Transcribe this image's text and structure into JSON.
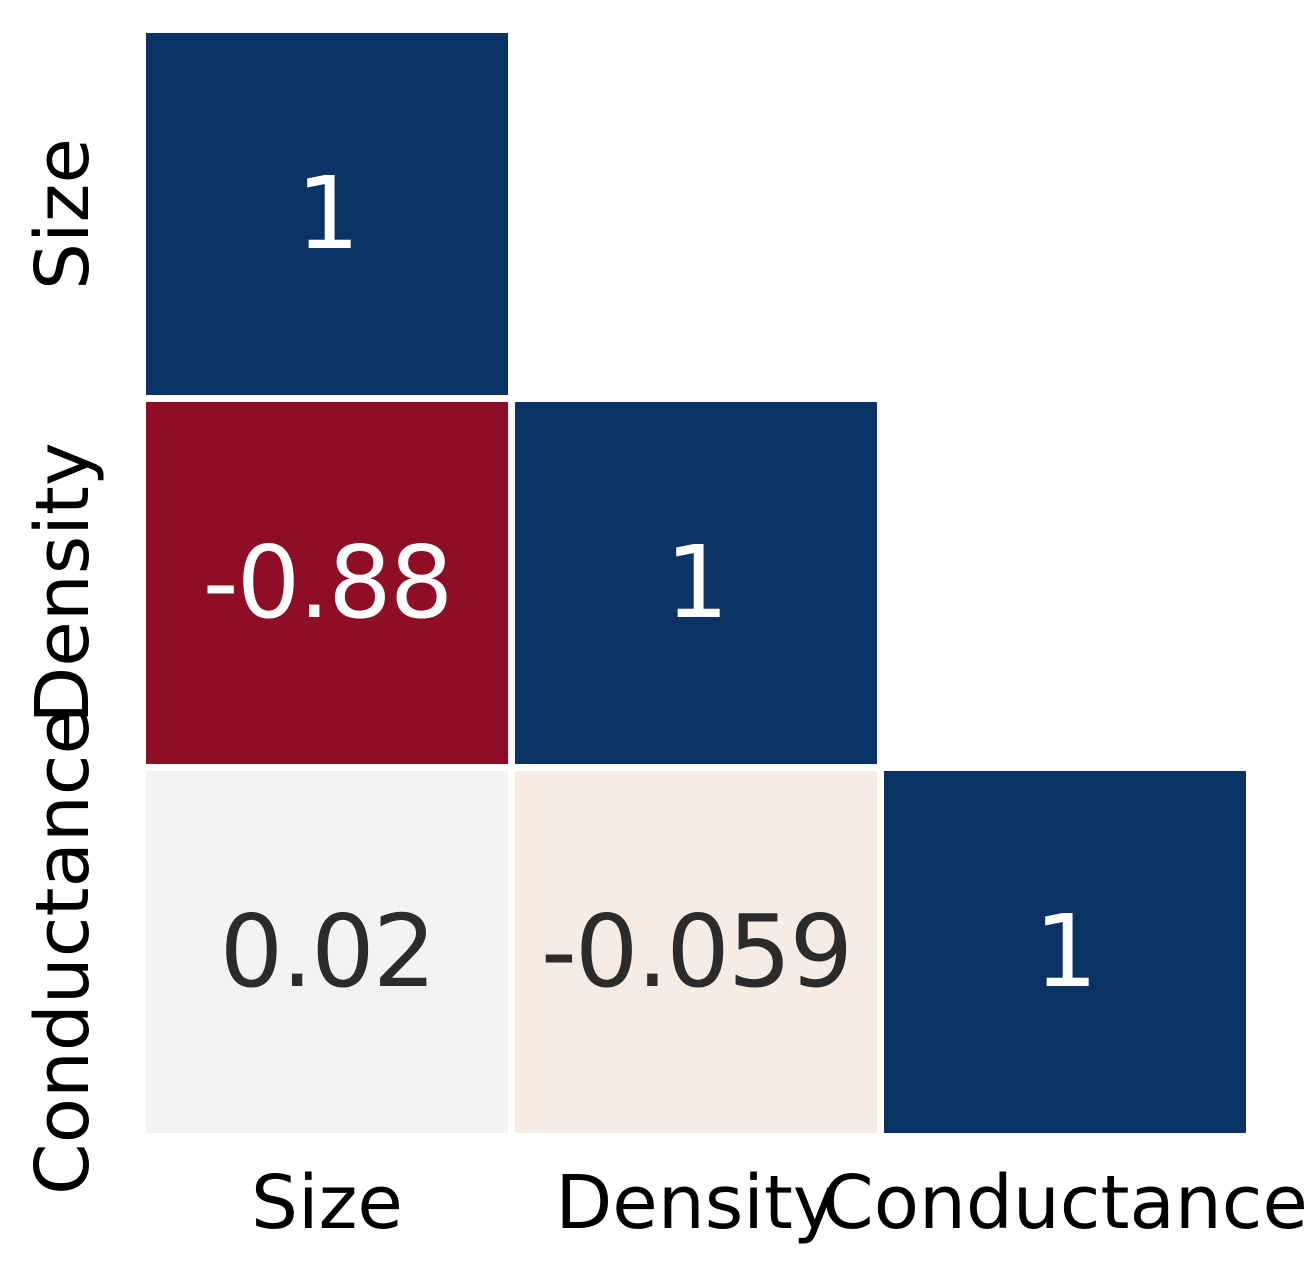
{
  "chart_data": {
    "type": "heatmap",
    "subtype": "correlation-matrix",
    "shape": "lower-triangular",
    "title": "",
    "variables": [
      "Size",
      "Density",
      "Conductance"
    ],
    "row_labels": [
      "Size",
      "Density",
      "Conductance"
    ],
    "col_labels": [
      "Size",
      "Density",
      "Conductance"
    ],
    "colormap": "RdBu",
    "value_range": [
      -1,
      1
    ],
    "grid": "off",
    "legend": "none",
    "matrix": [
      [
        1,
        null,
        null
      ],
      [
        -0.88,
        1,
        null
      ],
      [
        0.02,
        -0.059,
        1
      ]
    ],
    "cells": [
      {
        "row": 0,
        "col": 0,
        "value": 1,
        "label": "1",
        "bg": "#0a3264",
        "fg": "#ffffff"
      },
      {
        "row": 1,
        "col": 0,
        "value": -0.88,
        "label": "-0.88",
        "bg": "#8e0e26",
        "fg": "#ffffff"
      },
      {
        "row": 1,
        "col": 1,
        "value": 1,
        "label": "1",
        "bg": "#0a3264",
        "fg": "#ffffff"
      },
      {
        "row": 2,
        "col": 0,
        "value": 0.02,
        "label": "0.02",
        "bg": "#f2f3f5",
        "fg": "#2b2b2b"
      },
      {
        "row": 2,
        "col": 1,
        "value": -0.059,
        "label": "-0.059",
        "bg": "#f7ece3",
        "fg": "#2b2b2b"
      },
      {
        "row": 2,
        "col": 2,
        "value": 1,
        "label": "1",
        "bg": "#0a3264",
        "fg": "#ffffff"
      }
    ],
    "colors": {
      "strong_positive": "#0a3264",
      "strong_negative": "#8e0e26",
      "near_zero_positive": "#f2f3f5",
      "near_zero_negative": "#f7ece3",
      "text_on_dark": "#ffffff",
      "text_on_light": "#2b2b2b",
      "axis_text": "#000000",
      "background": "#ffffff"
    }
  }
}
